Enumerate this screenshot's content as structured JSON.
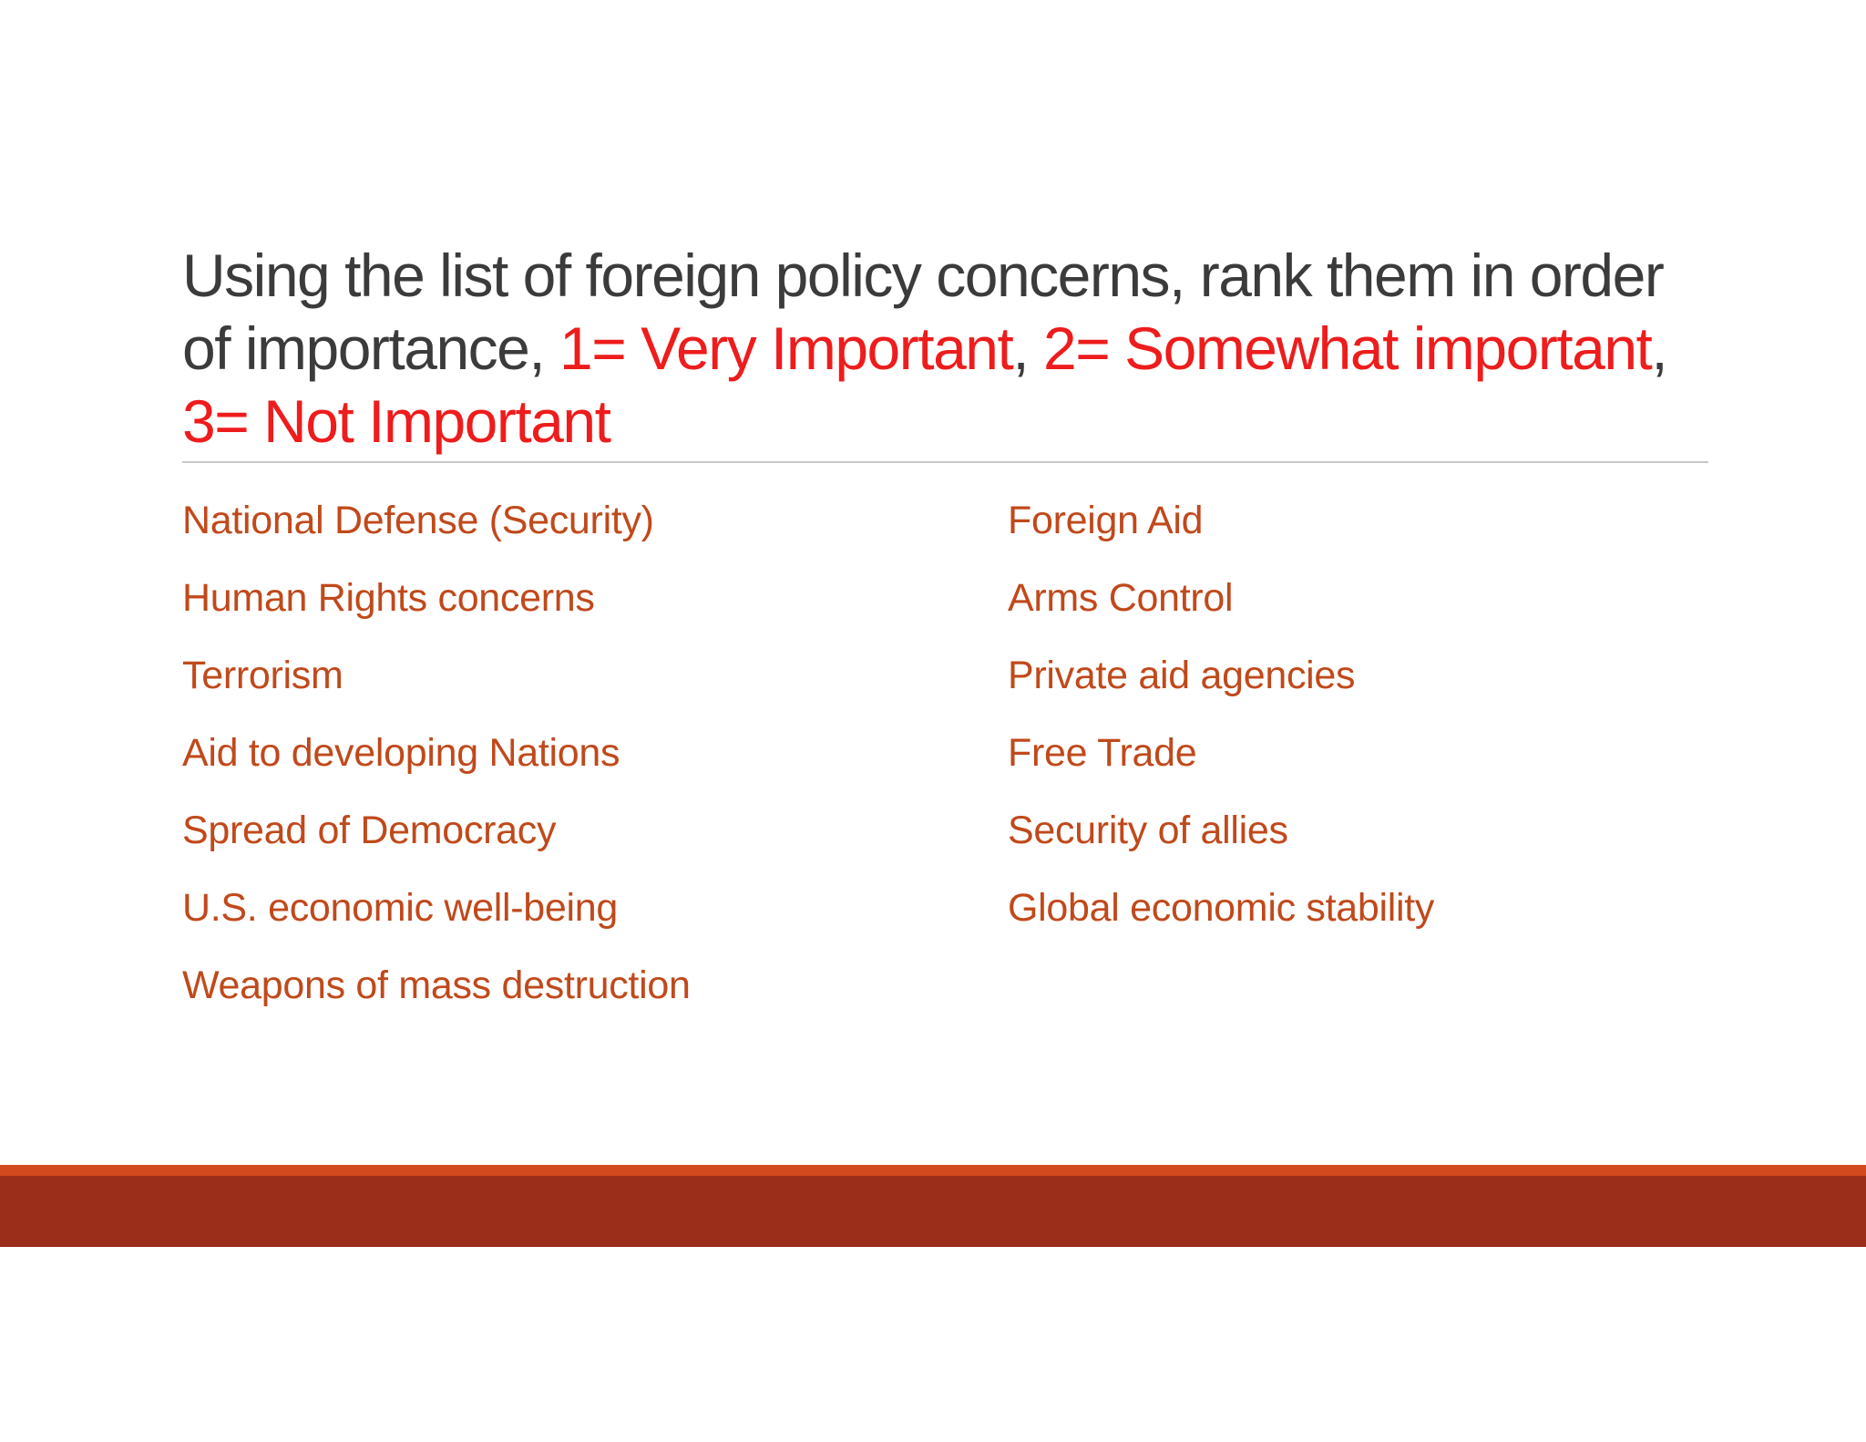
{
  "title": {
    "part1": "Using the list of foreign policy concerns, rank them in order of importance, ",
    "rank1": "1= Very Important",
    "sep1": ", ",
    "rank2": "2= Somewhat important",
    "sep2": ", ",
    "rank3": "3= Not Important"
  },
  "left_items": [
    "National Defense (Security)",
    "Human Rights concerns",
    "Terrorism",
    "Aid to developing Nations",
    "Spread of Democracy",
    "U.S. economic well-being",
    "Weapons of mass destruction"
  ],
  "right_items": [
    "Foreign Aid",
    "Arms Control",
    "Private aid agencies",
    "Free Trade",
    "Security of allies",
    "Global economic stability"
  ],
  "colors": {
    "title_text": "#3b3b3b",
    "title_highlight": "#ee1c1c",
    "list_text": "#c0491b",
    "footer_accent": "#d24a1e",
    "footer_band": "#9b2d1b"
  }
}
